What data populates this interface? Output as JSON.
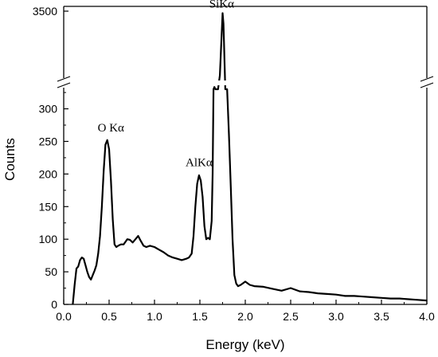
{
  "chart_data": {
    "type": "line",
    "title": "",
    "xlabel": "Energy (keV)",
    "ylabel": "Counts",
    "xlim": [
      0,
      4.0
    ],
    "ylim_lower": [
      0,
      330
    ],
    "ylim_upper_tick": 3500,
    "axis_break": true,
    "grid": false,
    "x_ticks": [
      "0.0",
      "0.5",
      "1.0",
      "1.5",
      "2.0",
      "2.5",
      "3.0",
      "3.5",
      "4.0"
    ],
    "y_ticks": [
      "0",
      "50",
      "100",
      "150",
      "200",
      "250",
      "300",
      "3500"
    ],
    "annotations": [
      {
        "text": "O Kα",
        "x": 0.52,
        "y": 265
      },
      {
        "text": "AlKα",
        "x": 1.49,
        "y": 212
      },
      {
        "text": "SiKα",
        "x": 1.74,
        "y": 3650
      }
    ],
    "series": [
      {
        "name": "",
        "x": [
          0.1,
          0.12,
          0.14,
          0.16,
          0.18,
          0.2,
          0.22,
          0.24,
          0.26,
          0.28,
          0.3,
          0.32,
          0.34,
          0.36,
          0.38,
          0.4,
          0.42,
          0.44,
          0.46,
          0.48,
          0.5,
          0.52,
          0.54,
          0.56,
          0.58,
          0.6,
          0.63,
          0.66,
          0.7,
          0.73,
          0.76,
          0.79,
          0.82,
          0.85,
          0.88,
          0.91,
          0.95,
          1.0,
          1.05,
          1.1,
          1.15,
          1.2,
          1.25,
          1.3,
          1.35,
          1.38,
          1.41,
          1.43,
          1.45,
          1.47,
          1.49,
          1.51,
          1.53,
          1.55,
          1.57,
          1.59,
          1.61,
          1.63,
          1.64,
          1.65,
          1.66,
          1.67,
          1.7,
          1.72,
          1.74,
          1.75,
          1.76,
          1.78,
          1.8,
          1.82,
          1.84,
          1.86,
          1.88,
          1.9,
          1.92,
          1.95,
          2.0,
          2.05,
          2.1,
          2.2,
          2.3,
          2.4,
          2.5,
          2.6,
          2.7,
          2.8,
          2.9,
          3.0,
          3.1,
          3.2,
          3.3,
          3.4,
          3.5,
          3.6,
          3.7,
          3.8,
          3.9,
          4.0
        ],
        "y": [
          0,
          30,
          55,
          58,
          68,
          72,
          70,
          60,
          50,
          42,
          38,
          45,
          52,
          60,
          78,
          105,
          150,
          205,
          245,
          252,
          238,
          190,
          130,
          92,
          88,
          90,
          92,
          92,
          100,
          99,
          95,
          100,
          105,
          97,
          90,
          88,
          90,
          88,
          84,
          80,
          75,
          72,
          70,
          68,
          70,
          72,
          78,
          105,
          150,
          185,
          198,
          190,
          165,
          120,
          100,
          102,
          100,
          128,
          200,
          330,
          420,
          330,
          330,
          900,
          2600,
          3420,
          3000,
          330,
          330,
          260,
          180,
          100,
          45,
          32,
          28,
          30,
          35,
          30,
          28,
          27,
          24,
          21,
          25,
          20,
          19,
          17,
          16,
          15,
          13,
          13,
          12,
          11,
          10,
          9,
          9,
          8,
          7,
          6
        ]
      }
    ]
  }
}
